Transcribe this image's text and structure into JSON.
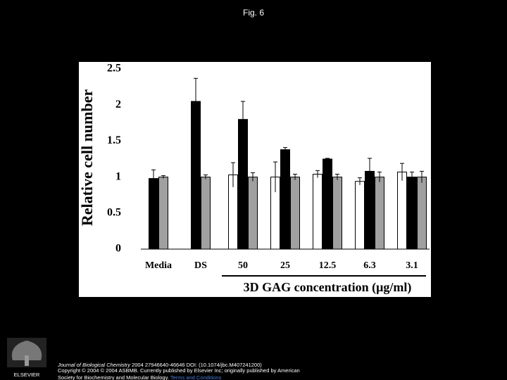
{
  "page_title": "Fig. 6",
  "chart_data": {
    "type": "bar",
    "ylabel": "Relative cell number",
    "xlabel": "3D GAG concentration (μg/ml)",
    "categories": [
      "Media",
      "DS",
      "50",
      "25",
      "12.5",
      "6.3",
      "3.1"
    ],
    "series": [
      {
        "color": "#ffffff",
        "values": [
          null,
          null,
          1.03,
          1.0,
          1.04,
          0.94,
          1.07
        ],
        "errors": [
          null,
          null,
          0.17,
          0.21,
          0.05,
          0.05,
          0.12
        ]
      },
      {
        "color": "#000000",
        "values": [
          0.98,
          2.05,
          1.8,
          1.38,
          1.25,
          1.08,
          1.0
        ],
        "errors": [
          0.12,
          0.32,
          0.25,
          0.03,
          0.01,
          0.18,
          0.07
        ]
      },
      {
        "color": "#a0a0a0",
        "values": [
          1.0,
          1.0,
          1.0,
          1.0,
          1.0,
          1.0,
          1.0
        ],
        "errors": [
          0.02,
          0.03,
          0.06,
          0.04,
          0.04,
          0.07,
          0.08
        ]
      }
    ],
    "ylim": [
      0,
      2.5
    ],
    "yticks": [
      0,
      0.5,
      1,
      1.5,
      2,
      2.5
    ],
    "grid": false
  },
  "footer": {
    "logo_text": "ELSEVIER",
    "journal": "Journal of Biological Chemistry",
    "citation": " 2004 27946640-46646 DOI: (10.1074/jbc.M407241200)",
    "copyright_line1": "Copyright © 2004 © 2004 ASBMB. Currently published by Elsevier Inc; originally published by American",
    "copyright_line2": "Society for Biochemistry and Molecular Biology.",
    "terms_link": "Terms and Conditions"
  }
}
